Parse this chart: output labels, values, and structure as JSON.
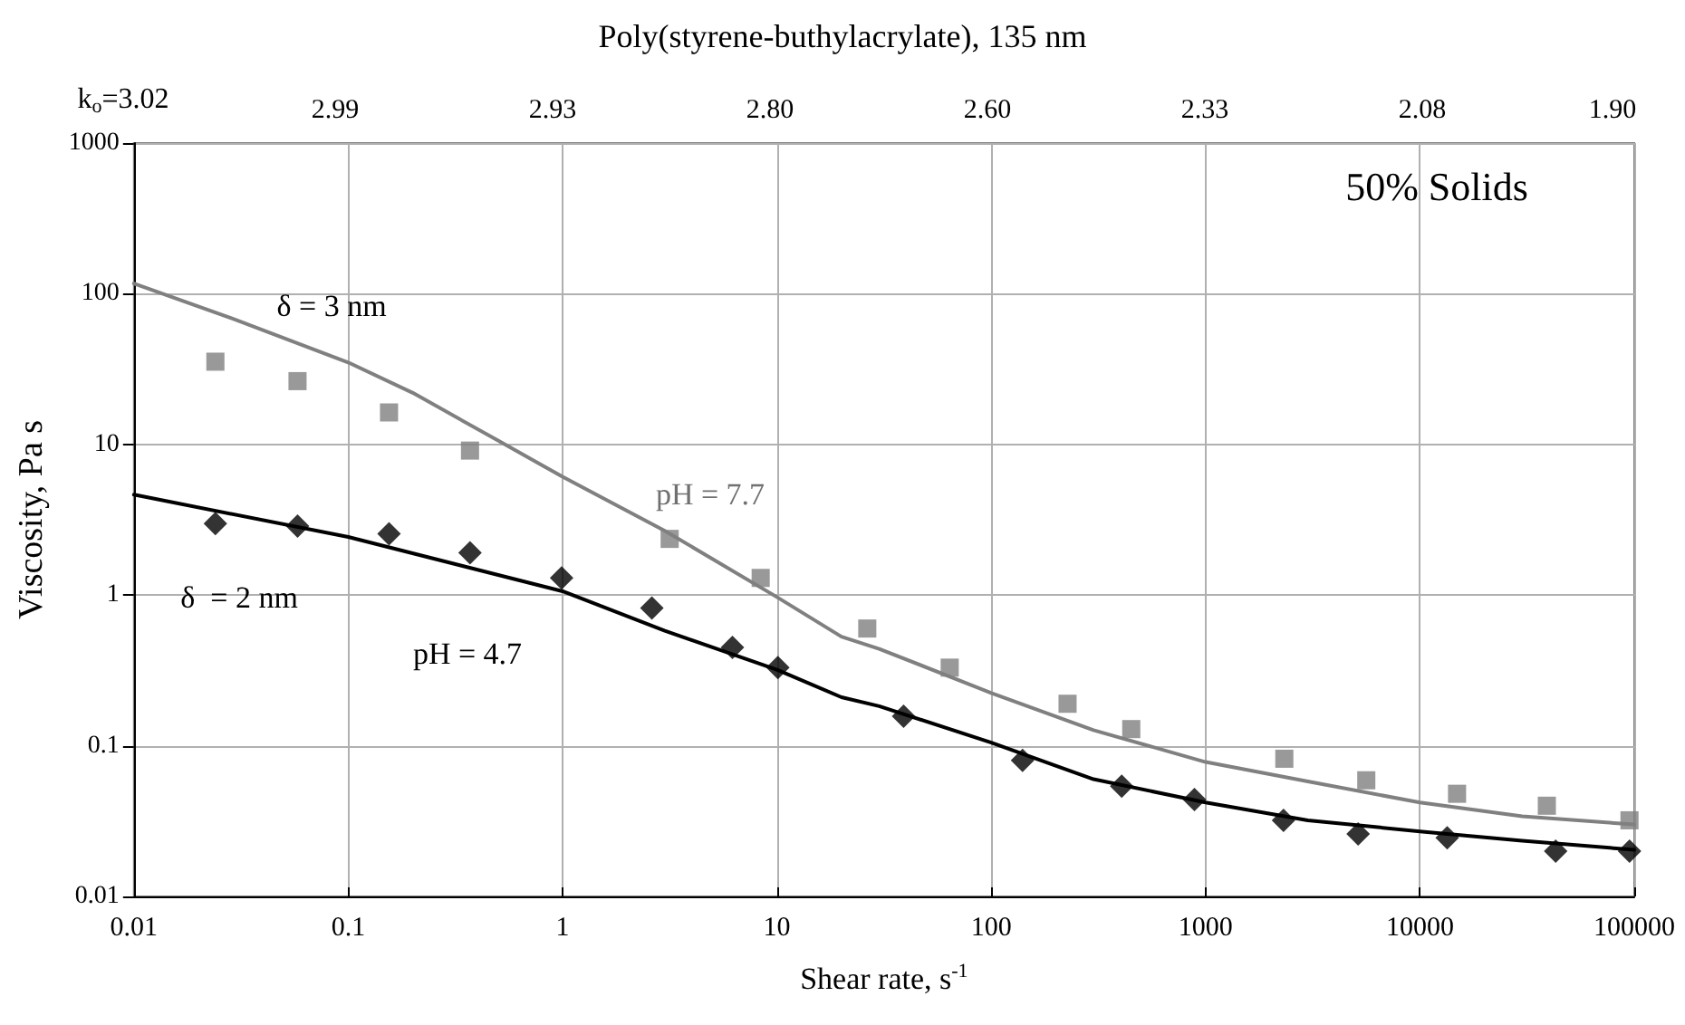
{
  "chart_data": {
    "type": "scatter",
    "title": "Poly(styrene-buthylacrylate), 135 nm",
    "xlabel": "Shear rate, s$^{-1}$",
    "ylabel": "Viscosity, Pa s",
    "log": "xy",
    "grid": true,
    "xlim": [
      0.01,
      100000
    ],
    "xticks": [
      0.01,
      0.1,
      1,
      10,
      100,
      1000,
      10000,
      100000
    ],
    "ylim": [
      0.01,
      1000
    ],
    "yticks": [
      0.01,
      0.1,
      1,
      10,
      100,
      1000
    ],
    "series": [
      {
        "marker": "square",
        "color": "#808080",
        "x": [
          0.024,
          0.058,
          0.155,
          0.37,
          3.16,
          8.4,
          26.4,
          64,
          227,
          450,
          2330,
          5620,
          14900,
          39100,
          95000
        ],
        "values": [
          35.4,
          26.3,
          16.3,
          9.1,
          2.36,
          1.3,
          0.6,
          0.33,
          0.19,
          0.129,
          0.082,
          0.059,
          0.048,
          0.04,
          0.032
        ]
      },
      {
        "type": "scatter",
        "marker": "diamond",
        "color": "#000000",
        "x": [
          0.024,
          0.058,
          0.155,
          0.37,
          0.99,
          2.61,
          6.2,
          10.1,
          39,
          140,
          406,
          887,
          2310,
          5150,
          13400,
          43000,
          95000
        ],
        "values": [
          2.98,
          2.87,
          2.55,
          1.91,
          1.3,
          0.82,
          0.45,
          0.33,
          0.157,
          0.08,
          0.054,
          0.044,
          0.032,
          0.026,
          0.0245,
          0.02,
          0.02
        ]
      },
      {
        "type": "line",
        "marker": "none",
        "line_style": "solid",
        "color": "#808080",
        "x": [
          0.01,
          0.03,
          0.1,
          0.2,
          0.5,
          1,
          3,
          10,
          20,
          30,
          100,
          300,
          1000,
          3000,
          10000,
          30000,
          100000
        ],
        "values": [
          117,
          67,
          35,
          22,
          10.6,
          6.1,
          2.67,
          0.97,
          0.53,
          0.44,
          0.224,
          0.127,
          0.078,
          0.058,
          0.042,
          0.034,
          0.03
        ]
      },
      {
        "type": "line",
        "marker": "none",
        "line_style": "solid",
        "color": "#000000",
        "x": [
          0.01,
          0.1,
          1,
          3,
          10,
          20,
          30,
          100,
          300,
          1000,
          3000,
          10000,
          30000,
          100000
        ],
        "values": [
          4.64,
          2.43,
          1.06,
          0.58,
          0.32,
          0.21,
          0.183,
          0.105,
          0.06,
          0.042,
          0.032,
          0.027,
          0.0234,
          0.0204
        ]
      }
    ],
    "annotations": [
      "k$_{o}$=3.02",
      "2.99",
      "2.93",
      "2.80",
      "2.60",
      "2.33",
      "2.08",
      "1.90",
      "δ = 3 nm",
      "δ  = 2 nm",
      "pH = 7.7",
      "pH = 4.7",
      "50% Solids"
    ]
  }
}
